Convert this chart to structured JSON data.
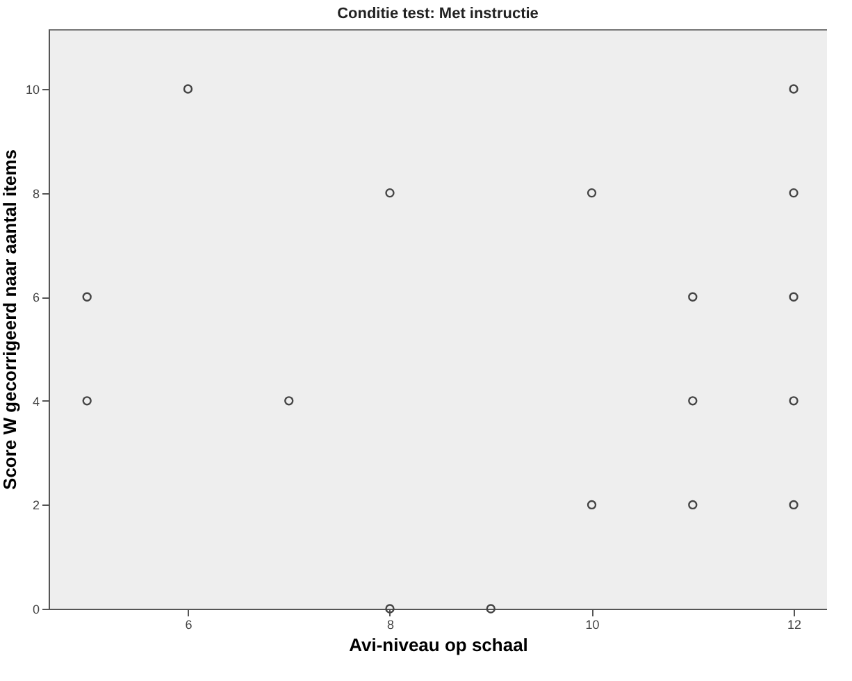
{
  "chart_data": {
    "type": "scatter",
    "title": "Conditie test: Met instructie",
    "xlabel": "Avi-niveau op schaal",
    "ylabel": "Score W gecorrigeerd naar aantal items",
    "x": [
      5,
      5,
      6,
      7,
      8,
      8,
      9,
      10,
      10,
      11,
      11,
      11,
      12,
      12,
      12,
      12,
      12
    ],
    "values": [
      6,
      4,
      10,
      4,
      8,
      0,
      0,
      8,
      2,
      6,
      4,
      2,
      10,
      8,
      6,
      4,
      2
    ],
    "color": "#444444",
    "marker": "circle",
    "grid": false,
    "xlim": [
      4.62,
      12.33
    ],
    "xticks": [
      6,
      8,
      10,
      12
    ],
    "ylim": [
      0,
      11.15
    ],
    "yticks": [
      0,
      2,
      4,
      6,
      8,
      10
    ]
  }
}
